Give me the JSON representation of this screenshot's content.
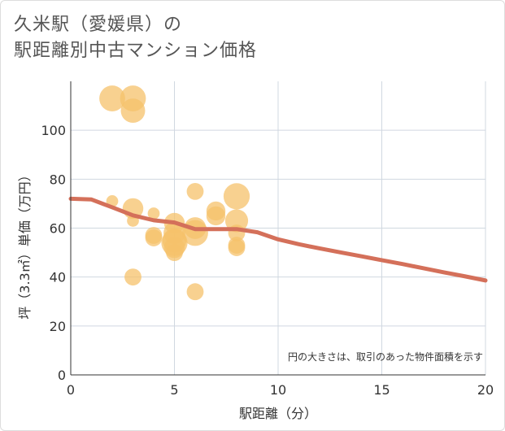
{
  "title": {
    "line1": "久米駅（愛媛県）の",
    "line2": "駅距離別中古マンション価格"
  },
  "chart_data": {
    "type": "scatter",
    "title": "久米駅（愛媛県）の駅距離別中古マンション価格",
    "xlabel": "駅距離（分）",
    "ylabel": "坪（3.3㎡）単価（万円）",
    "note": "円の大きさは、取引のあった物件面積を示す",
    "xlim": [
      0,
      20
    ],
    "ylim": [
      0,
      120
    ],
    "xticks": [
      0,
      5,
      10,
      15,
      20
    ],
    "yticks": [
      0,
      20,
      40,
      60,
      80,
      100
    ],
    "grid": true,
    "bubble_color": "#f5c26b",
    "trend_color": "#d4705a",
    "points": [
      {
        "x": 2,
        "y": 113,
        "size": 70
      },
      {
        "x": 3,
        "y": 113,
        "size": 70
      },
      {
        "x": 3,
        "y": 108,
        "size": 62
      },
      {
        "x": 2,
        "y": 71,
        "size": 15
      },
      {
        "x": 3,
        "y": 68,
        "size": 45
      },
      {
        "x": 3,
        "y": 63,
        "size": 15
      },
      {
        "x": 3,
        "y": 40,
        "size": 30
      },
      {
        "x": 4,
        "y": 66,
        "size": 15
      },
      {
        "x": 4,
        "y": 57,
        "size": 30
      },
      {
        "x": 4,
        "y": 56,
        "size": 30
      },
      {
        "x": 5,
        "y": 62,
        "size": 45
      },
      {
        "x": 5,
        "y": 58,
        "size": 50
      },
      {
        "x": 5,
        "y": 55,
        "size": 60
      },
      {
        "x": 5,
        "y": 54,
        "size": 72
      },
      {
        "x": 5,
        "y": 52,
        "size": 45
      },
      {
        "x": 5,
        "y": 50,
        "size": 30
      },
      {
        "x": 6,
        "y": 75,
        "size": 30
      },
      {
        "x": 6,
        "y": 60,
        "size": 50
      },
      {
        "x": 6,
        "y": 58,
        "size": 70
      },
      {
        "x": 6,
        "y": 34,
        "size": 30
      },
      {
        "x": 7,
        "y": 67,
        "size": 38
      },
      {
        "x": 7,
        "y": 65,
        "size": 38
      },
      {
        "x": 8,
        "y": 73,
        "size": 72
      },
      {
        "x": 8,
        "y": 63,
        "size": 55
      },
      {
        "x": 8,
        "y": 58,
        "size": 30
      },
      {
        "x": 8,
        "y": 53,
        "size": 30
      },
      {
        "x": 8,
        "y": 52,
        "size": 30
      }
    ],
    "trend_line": {
      "name": "trend",
      "x": [
        0,
        1,
        2,
        3,
        4,
        5,
        6,
        7,
        8,
        9,
        10,
        11,
        12,
        13,
        14,
        15,
        16,
        17,
        18,
        19,
        20
      ],
      "y": [
        72,
        71.7,
        68.5,
        65.2,
        63.2,
        62.3,
        59.6,
        59.6,
        59.6,
        58.3,
        55.4,
        53.4,
        51.7,
        50.1,
        48.5,
        46.9,
        45.3,
        43.6,
        41.9,
        40.3,
        38.6
      ]
    }
  }
}
